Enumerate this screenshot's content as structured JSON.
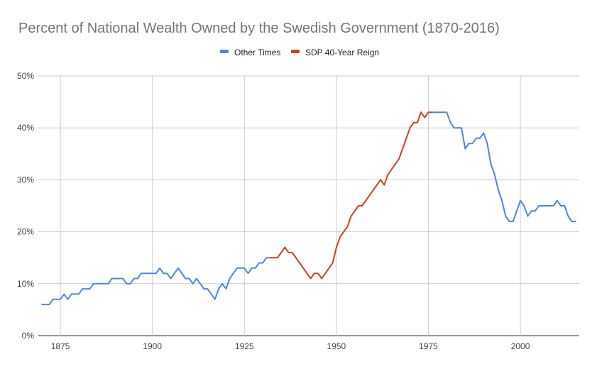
{
  "chart_data": {
    "type": "line",
    "title": "Percent of National Wealth Owned by the Swedish Government (1870-2016)",
    "xlabel": "",
    "ylabel": "",
    "xlim": [
      1869,
      2016
    ],
    "ylim": [
      0,
      50
    ],
    "x_ticks": [
      1875,
      1900,
      1925,
      1950,
      1975,
      2000
    ],
    "x_tick_labels": [
      "1875",
      "1900",
      "1925",
      "1950",
      "1975",
      "2000"
    ],
    "y_ticks": [
      0,
      10,
      20,
      30,
      40,
      50
    ],
    "y_tick_labels": [
      "0%",
      "10%",
      "20%",
      "30%",
      "40%",
      "50%"
    ],
    "grid": true,
    "legend_position": "top",
    "series": [
      {
        "name": "Other Times",
        "color": "#4a86e8",
        "points": [
          [
            1870,
            6
          ],
          [
            1871,
            6
          ],
          [
            1872,
            6
          ],
          [
            1873,
            7
          ],
          [
            1874,
            7
          ],
          [
            1875,
            7
          ],
          [
            1876,
            8
          ],
          [
            1877,
            7
          ],
          [
            1878,
            8
          ],
          [
            1879,
            8
          ],
          [
            1880,
            8
          ],
          [
            1881,
            9
          ],
          [
            1882,
            9
          ],
          [
            1883,
            9
          ],
          [
            1884,
            10
          ],
          [
            1885,
            10
          ],
          [
            1886,
            10
          ],
          [
            1887,
            10
          ],
          [
            1888,
            10
          ],
          [
            1889,
            11
          ],
          [
            1890,
            11
          ],
          [
            1891,
            11
          ],
          [
            1892,
            11
          ],
          [
            1893,
            10
          ],
          [
            1894,
            10
          ],
          [
            1895,
            11
          ],
          [
            1896,
            11
          ],
          [
            1897,
            12
          ],
          [
            1898,
            12
          ],
          [
            1899,
            12
          ],
          [
            1900,
            12
          ],
          [
            1901,
            12
          ],
          [
            1902,
            13
          ],
          [
            1903,
            12
          ],
          [
            1904,
            12
          ],
          [
            1905,
            11
          ],
          [
            1906,
            12
          ],
          [
            1907,
            13
          ],
          [
            1908,
            12
          ],
          [
            1909,
            11
          ],
          [
            1910,
            11
          ],
          [
            1911,
            10
          ],
          [
            1912,
            11
          ],
          [
            1913,
            10
          ],
          [
            1914,
            9
          ],
          [
            1915,
            9
          ],
          [
            1916,
            8
          ],
          [
            1917,
            7
          ],
          [
            1918,
            9
          ],
          [
            1919,
            10
          ],
          [
            1920,
            9
          ],
          [
            1921,
            11
          ],
          [
            1922,
            12
          ],
          [
            1923,
            13
          ],
          [
            1924,
            13
          ],
          [
            1925,
            13
          ],
          [
            1926,
            12
          ],
          [
            1927,
            13
          ],
          [
            1928,
            13
          ],
          [
            1929,
            14
          ],
          [
            1930,
            14
          ],
          [
            1931,
            15
          ],
          [
            1932,
            15
          ]
        ]
      },
      {
        "name": "SDP 40-Year Reign",
        "color": "#cc4125",
        "points": [
          [
            1932,
            15
          ],
          [
            1933,
            15
          ],
          [
            1934,
            15
          ],
          [
            1935,
            16
          ],
          [
            1936,
            17
          ],
          [
            1937,
            16
          ],
          [
            1938,
            16
          ],
          [
            1939,
            15
          ],
          [
            1940,
            14
          ],
          [
            1941,
            13
          ],
          [
            1942,
            12
          ],
          [
            1943,
            11
          ],
          [
            1944,
            12
          ],
          [
            1945,
            12
          ],
          [
            1946,
            11
          ],
          [
            1947,
            12
          ],
          [
            1948,
            13
          ],
          [
            1949,
            14
          ],
          [
            1950,
            17
          ],
          [
            1951,
            19
          ],
          [
            1952,
            20
          ],
          [
            1953,
            21
          ],
          [
            1954,
            23
          ],
          [
            1955,
            24
          ],
          [
            1956,
            25
          ],
          [
            1957,
            25
          ],
          [
            1958,
            26
          ],
          [
            1959,
            27
          ],
          [
            1960,
            28
          ],
          [
            1961,
            29
          ],
          [
            1962,
            30
          ],
          [
            1963,
            29
          ],
          [
            1964,
            31
          ],
          [
            1965,
            32
          ],
          [
            1966,
            33
          ],
          [
            1967,
            34
          ],
          [
            1968,
            36
          ],
          [
            1969,
            38
          ],
          [
            1970,
            40
          ],
          [
            1971,
            41
          ],
          [
            1972,
            41
          ],
          [
            1973,
            43
          ],
          [
            1974,
            42
          ],
          [
            1975,
            43
          ],
          [
            1976,
            43
          ]
        ]
      },
      {
        "name": "Other Times",
        "color": "#4a86e8",
        "points": [
          [
            1976,
            43
          ],
          [
            1977,
            43
          ],
          [
            1978,
            43
          ],
          [
            1979,
            43
          ],
          [
            1980,
            43
          ],
          [
            1981,
            41
          ],
          [
            1982,
            40
          ],
          [
            1983,
            40
          ],
          [
            1984,
            40
          ],
          [
            1985,
            36
          ],
          [
            1986,
            37
          ],
          [
            1987,
            37
          ],
          [
            1988,
            38
          ],
          [
            1989,
            38
          ],
          [
            1990,
            39
          ],
          [
            1991,
            37
          ],
          [
            1992,
            33
          ],
          [
            1993,
            31
          ],
          [
            1994,
            28
          ],
          [
            1995,
            26
          ],
          [
            1996,
            23
          ],
          [
            1997,
            22
          ],
          [
            1998,
            22
          ],
          [
            1999,
            24
          ],
          [
            2000,
            26
          ],
          [
            2001,
            25
          ],
          [
            2002,
            23
          ],
          [
            2003,
            24
          ],
          [
            2004,
            24
          ],
          [
            2005,
            25
          ],
          [
            2006,
            25
          ],
          [
            2007,
            25
          ],
          [
            2008,
            25
          ],
          [
            2009,
            25
          ],
          [
            2010,
            26
          ],
          [
            2011,
            25
          ],
          [
            2012,
            25
          ],
          [
            2013,
            23
          ],
          [
            2014,
            22
          ],
          [
            2015,
            22
          ]
        ]
      }
    ],
    "legend": [
      {
        "name": "Other Times",
        "color": "#4a86e8"
      },
      {
        "name": "SDP 40-Year Reign",
        "color": "#cc4125"
      }
    ]
  }
}
